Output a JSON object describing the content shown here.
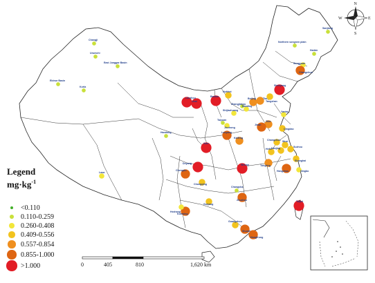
{
  "legend": {
    "title": "Legend",
    "unit": "mg·kg",
    "unit_exp": "-1",
    "classes": [
      {
        "label": "<0.110",
        "color": "#44b02a",
        "size": 2
      },
      {
        "label": "0.110-0.259",
        "color": "#c9e03a",
        "size": 3
      },
      {
        "label": "0.260-0.408",
        "color": "#f2e63a",
        "size": 4
      },
      {
        "label": "0.409-0.556",
        "color": "#f2c31e",
        "size": 5
      },
      {
        "label": "0.557-0.854",
        "color": "#ef8f1f",
        "size": 6
      },
      {
        "label": "0.855-1.000",
        "color": "#de6512",
        "size": 7
      },
      {
        "label": ">1.000",
        "color": "#e21d26",
        "size": 8
      }
    ]
  },
  "scale_bar": {
    "ticks": [
      "0",
      "405",
      "810",
      "1,620 km"
    ]
  },
  "compass": {
    "n": "N",
    "s": "S",
    "e": "E",
    "w": "W"
  },
  "cities": [
    {
      "name": "Changji",
      "cls": 1
    },
    {
      "name": "East Junggar Basin",
      "cls": 1
    },
    {
      "name": "Urumchi",
      "cls": 1
    },
    {
      "name": "Ebinur Basin",
      "cls": 1
    },
    {
      "name": "Korla",
      "cls": 1
    },
    {
      "name": "Lasa",
      "cls": 2
    },
    {
      "name": "Sanjiang",
      "cls": 1
    },
    {
      "name": "Northern songnen plain",
      "cls": 1
    },
    {
      "name": "Harbin",
      "cls": 1
    },
    {
      "name": "Songyuan",
      "cls": 2
    },
    {
      "name": "Changchun",
      "cls": 5
    },
    {
      "name": "Shenyang",
      "cls": 6
    },
    {
      "name": "Baotou",
      "cls": 6
    },
    {
      "name": "Huhhot",
      "cls": 3
    },
    {
      "name": "Wuhai",
      "cls": 6
    },
    {
      "name": "Beijing",
      "cls": 4
    },
    {
      "name": "Tianjin",
      "cls": 4
    },
    {
      "name": "Tangshan",
      "cls": 3
    },
    {
      "name": "Zhangjiakou",
      "cls": 1
    },
    {
      "name": "Shijiazhuang",
      "cls": 2
    },
    {
      "name": "Baoding",
      "cls": 2
    },
    {
      "name": "Taiyuan",
      "cls": 1
    },
    {
      "name": "Jinzhong",
      "cls": 2
    },
    {
      "name": "Yantai",
      "cls": 2
    },
    {
      "name": "Qingdao",
      "cls": 3
    },
    {
      "name": "Zibo",
      "cls": 4
    },
    {
      "name": "Jinan",
      "cls": 5
    },
    {
      "name": "Xian",
      "cls": 6
    },
    {
      "name": "Luoyang",
      "cls": 5
    },
    {
      "name": "Kaifeng",
      "cls": 4
    },
    {
      "name": "Lanzhou",
      "cls": 6
    },
    {
      "name": "Handong",
      "cls": 1
    },
    {
      "name": "Chengdu",
      "cls": 5
    },
    {
      "name": "Deyang",
      "cls": 6
    },
    {
      "name": "Chongqing",
      "cls": 3
    },
    {
      "name": "Wuhan",
      "cls": 6
    },
    {
      "name": "Hefei",
      "cls": 3
    },
    {
      "name": "Nanjing",
      "cls": 3
    },
    {
      "name": "Suzhou",
      "cls": 3
    },
    {
      "name": "Wuxi",
      "cls": 3
    },
    {
      "name": "Changzhou",
      "cls": 3
    },
    {
      "name": "Shanghai",
      "cls": 3
    },
    {
      "name": "Hangzhou",
      "cls": 5
    },
    {
      "name": "Tongling",
      "cls": 4
    },
    {
      "name": "Ningbo",
      "cls": 2
    },
    {
      "name": "Changsha",
      "cls": 1
    },
    {
      "name": "Zhuzhou",
      "cls": 5
    },
    {
      "name": "Guiyang",
      "cls": 3
    },
    {
      "name": "Kunming",
      "cls": 5
    },
    {
      "name": "Hezhang",
      "cls": 2
    },
    {
      "name": "Guangzhou",
      "cls": 3
    },
    {
      "name": "Shunde",
      "cls": 5
    },
    {
      "name": "HongKong",
      "cls": 5
    },
    {
      "name": "Taipei",
      "cls": 6
    }
  ]
}
